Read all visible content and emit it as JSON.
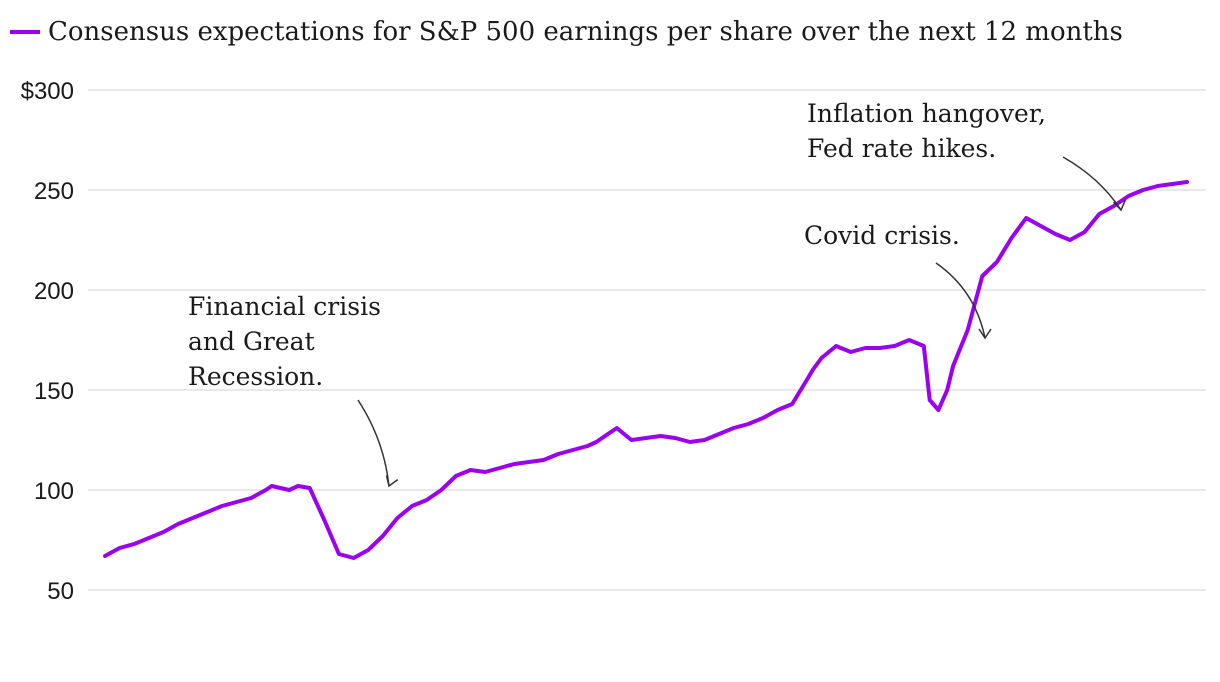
{
  "chart_data": {
    "type": "line",
    "title": "",
    "xlabel": "",
    "ylabel": "",
    "ylim": [
      50,
      300
    ],
    "yticks": [
      50,
      100,
      150,
      200,
      250,
      300
    ],
    "ytick_labels": [
      "50",
      "100",
      "150",
      "200",
      "250",
      "$300"
    ],
    "grid": true,
    "legend": "top-left",
    "series": [
      {
        "name": "Consensus expectations for S&P 500 earnings per share over the next 12 months",
        "color": "#9b00f0",
        "x": [
          2006.0,
          2006.25,
          2006.5,
          2006.75,
          2007.0,
          2007.25,
          2007.5,
          2007.75,
          2008.0,
          2008.25,
          2008.5,
          2008.75,
          2008.85,
          2009.0,
          2009.15,
          2009.3,
          2009.5,
          2009.75,
          2010.0,
          2010.25,
          2010.5,
          2010.75,
          2011.0,
          2011.25,
          2011.5,
          2011.75,
          2012.0,
          2012.25,
          2012.5,
          2012.75,
          2013.0,
          2013.25,
          2013.5,
          2013.75,
          2014.0,
          2014.25,
          2014.4,
          2014.5,
          2014.75,
          2015.0,
          2015.25,
          2015.5,
          2015.75,
          2016.0,
          2016.25,
          2016.5,
          2016.75,
          2017.0,
          2017.25,
          2017.5,
          2017.75,
          2018.0,
          2018.1,
          2018.25,
          2018.5,
          2018.75,
          2019.0,
          2019.25,
          2019.5,
          2019.75,
          2020.0,
          2020.1,
          2020.25,
          2020.4,
          2020.5,
          2020.75,
          2021.0,
          2021.25,
          2021.5,
          2021.75,
          2022.0,
          2022.25,
          2022.5,
          2022.75,
          2023.0,
          2023.25,
          2023.5,
          2023.75,
          2024.0,
          2024.25,
          2024.5
        ],
        "values": [
          67,
          71,
          73,
          76,
          79,
          83,
          86,
          89,
          92,
          94,
          96,
          100,
          102,
          101,
          100,
          102,
          101,
          85,
          68,
          66,
          70,
          77,
          86,
          92,
          95,
          100,
          107,
          110,
          109,
          111,
          113,
          114,
          115,
          118,
          120,
          122,
          124,
          126,
          131,
          125,
          126,
          127,
          126,
          124,
          125,
          128,
          131,
          133,
          136,
          140,
          143,
          155,
          160,
          166,
          172,
          169,
          171,
          171,
          172,
          175,
          172,
          145,
          140,
          150,
          162,
          180,
          207,
          214,
          226,
          236,
          232,
          228,
          225,
          229,
          238,
          242,
          247,
          250,
          252,
          253,
          254
        ]
      }
    ],
    "annotations": [
      {
        "lines": [
          "Financial crisis",
          "and Great",
          "Recession."
        ],
        "x": 2009.15
      },
      {
        "lines": [
          "Covid crisis."
        ],
        "x": 2020.25
      },
      {
        "lines": [
          "Inflation hangover,",
          "Fed rate hikes."
        ],
        "x": 2022.75
      }
    ]
  }
}
